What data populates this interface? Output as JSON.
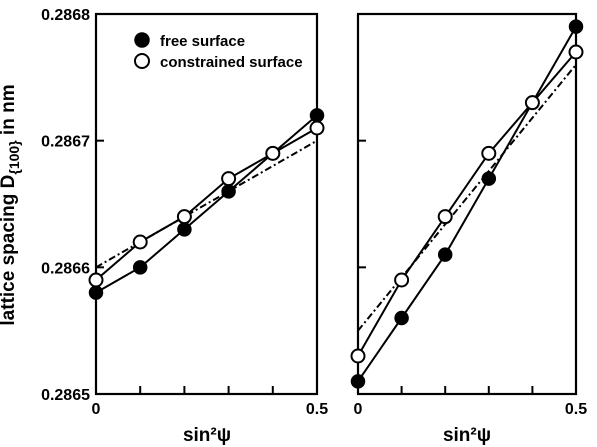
{
  "chart_data": {
    "type": "scatter",
    "ylabel": "lattice spacing D{100} in nm",
    "legend": {
      "placement": "top-left",
      "entries": [
        {
          "label": "free surface",
          "marker": "filled-circle"
        },
        {
          "label": "constrained surface",
          "marker": "open-circle"
        }
      ]
    },
    "y_ticks": [
      "0.2865",
      "0.2866",
      "0.2867",
      "0.2868"
    ],
    "ylim": [
      0.2865,
      0.2868
    ],
    "panels": [
      {
        "xlabel": "sin²ψ",
        "xlim": [
          0,
          0.5
        ],
        "x_ticks": [
          "0",
          "0.5"
        ],
        "series": [
          {
            "marker": "filled",
            "x": [
              0,
              0.1,
              0.2,
              0.3,
              0.4,
              0.5
            ],
            "y": [
              0.28658,
              0.2866,
              0.28663,
              0.28666,
              0.28669,
              0.28672
            ]
          },
          {
            "marker": "open",
            "x": [
              0,
              0.1,
              0.2,
              0.3,
              0.4,
              0.5
            ],
            "y": [
              0.28659,
              0.28662,
              0.28664,
              0.28667,
              0.28669,
              0.28671
            ]
          }
        ],
        "fit": {
          "x": [
            0,
            0.5
          ],
          "y": [
            0.2866,
            0.2867
          ]
        }
      },
      {
        "xlabel": "sin²ψ",
        "xlim": [
          0,
          0.5
        ],
        "x_ticks": [
          "0",
          "0.5"
        ],
        "series": [
          {
            "marker": "filled",
            "x": [
              0,
              0.1,
              0.2,
              0.3,
              0.4,
              0.5
            ],
            "y": [
              0.28651,
              0.28656,
              0.28661,
              0.28667,
              0.28673,
              0.28679
            ]
          },
          {
            "marker": "open",
            "x": [
              0,
              0.1,
              0.2,
              0.3,
              0.4,
              0.5
            ],
            "y": [
              0.28653,
              0.28659,
              0.28664,
              0.28669,
              0.28673,
              0.28677
            ]
          }
        ],
        "fit": {
          "x": [
            0,
            0.5
          ],
          "y": [
            0.28655,
            0.28676
          ]
        }
      }
    ]
  }
}
